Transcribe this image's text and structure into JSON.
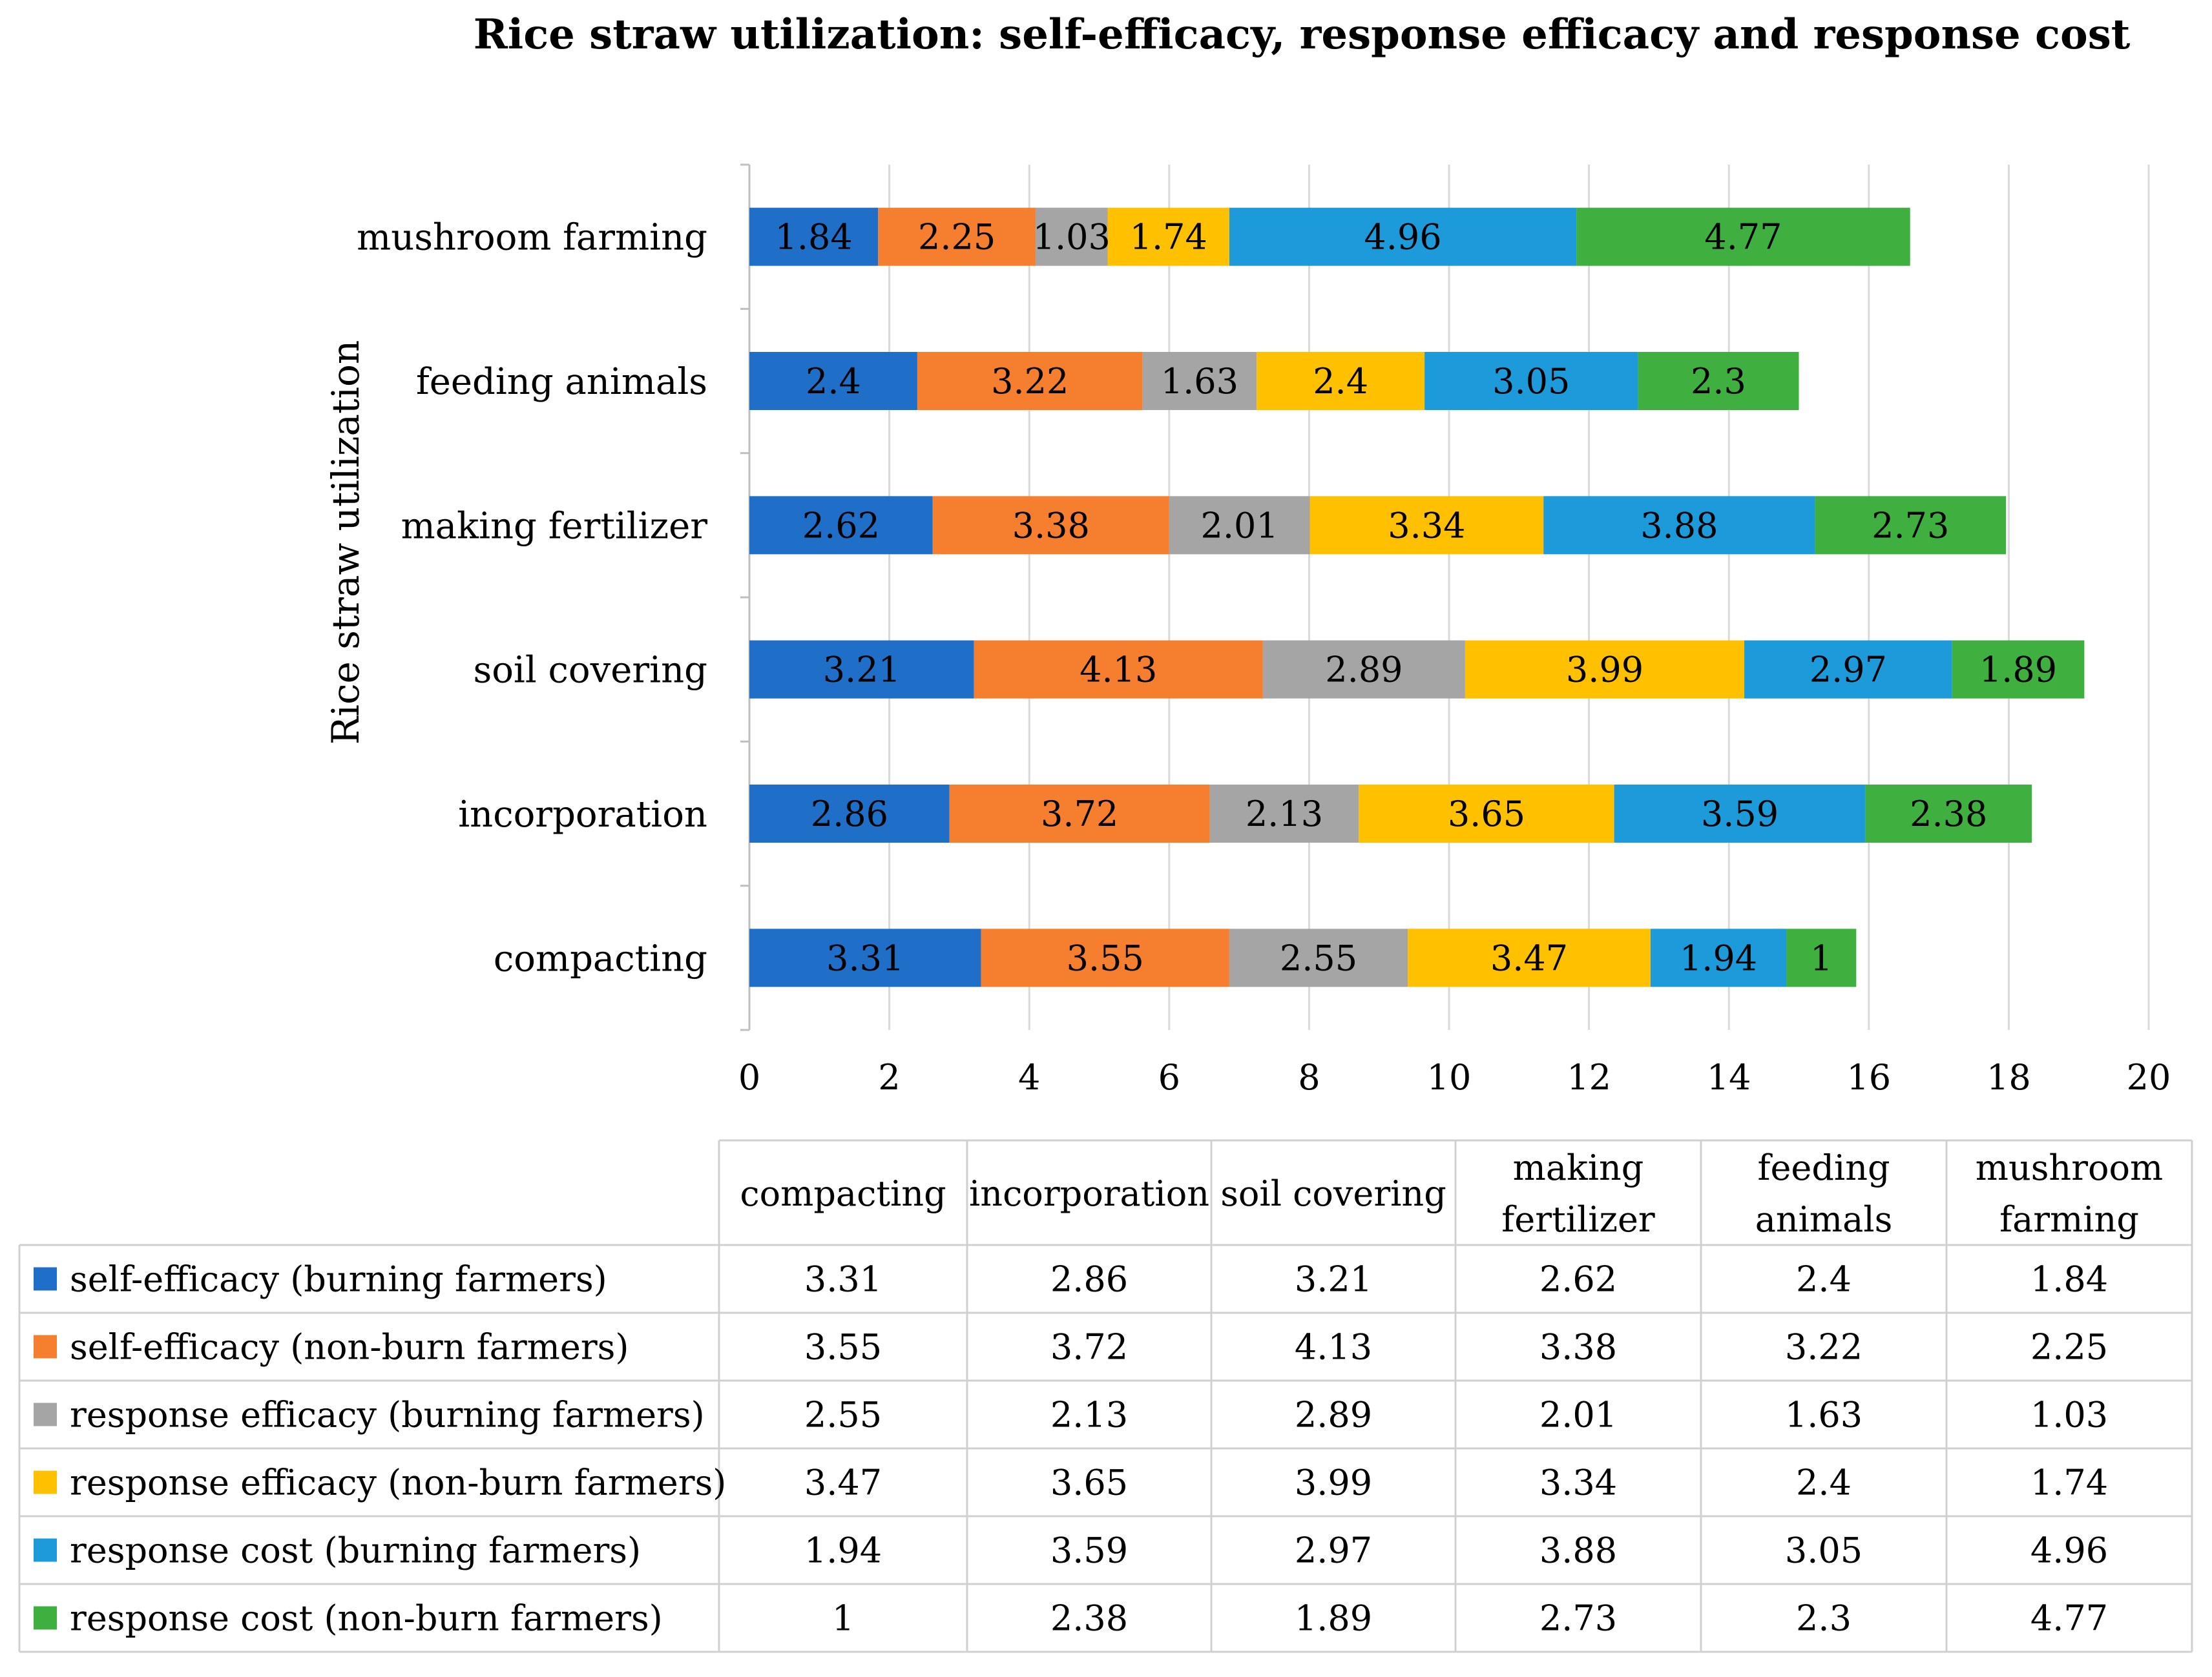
{
  "chart_data": {
    "type": "bar",
    "orientation": "horizontal",
    "stacked": true,
    "title": "Rice straw utilization: self-efficacy, response efficacy and response cost",
    "ylabel": "Rice straw utilization",
    "xlabel": "",
    "xlim": [
      0,
      20
    ],
    "xticks": [
      0,
      2,
      4,
      6,
      8,
      10,
      12,
      14,
      16,
      18,
      20
    ],
    "grid": true,
    "categories": [
      "compacting",
      "incorporation",
      "soil covering",
      "making fertilizer",
      "feeding animals",
      "mushroom farming"
    ],
    "table_headers": [
      "compacting",
      "incorporation",
      "soil covering",
      "making\nfertilizer",
      "feeding\nanimals",
      "mushroom\nfarming"
    ],
    "series": [
      {
        "name": "self-efficacy (burning farmers)",
        "color": "#1F6FC9",
        "values": [
          3.31,
          2.86,
          3.21,
          2.62,
          2.4,
          1.84
        ]
      },
      {
        "name": "self-efficacy (non-burn farmers)",
        "color": "#F57E2F",
        "values": [
          3.55,
          3.72,
          4.13,
          3.38,
          3.22,
          2.25
        ]
      },
      {
        "name": "response efficacy (burning farmers)",
        "color": "#A5A5A5",
        "values": [
          2.55,
          2.13,
          2.89,
          2.01,
          1.63,
          1.03
        ]
      },
      {
        "name": "response efficacy (non-burn farmers)",
        "color": "#FFC000",
        "values": [
          3.47,
          3.65,
          3.99,
          3.34,
          2.4,
          1.74
        ]
      },
      {
        "name": "response cost (burning farmers)",
        "color": "#1C9AD9",
        "values": [
          1.94,
          3.59,
          2.97,
          3.88,
          3.05,
          4.96
        ]
      },
      {
        "name": "response cost (non-burn farmers)",
        "color": "#3FAF3F",
        "values": [
          1,
          2.38,
          1.89,
          2.73,
          2.3,
          4.77
        ]
      }
    ]
  }
}
